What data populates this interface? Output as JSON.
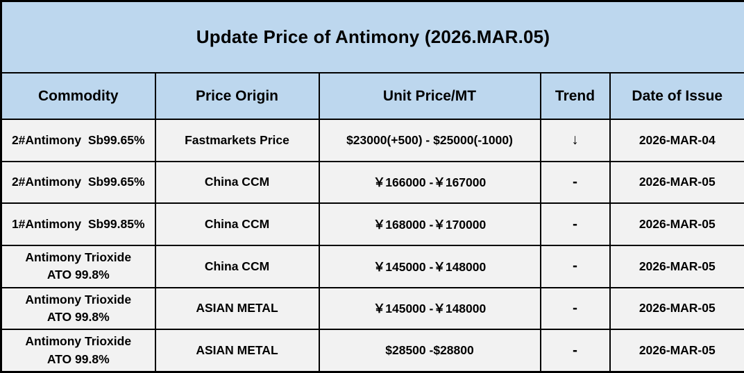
{
  "title": "Update Price of Antimony (2026.MAR.05)",
  "colors": {
    "header_bg": "#BDD7EE",
    "row_bg": "#F2F2F2",
    "border": "#000000",
    "text": "#000000"
  },
  "columns": {
    "commodity": "Commodity",
    "origin": "Price Origin",
    "price": "Unit Price/MT",
    "trend": "Trend",
    "date": "Date of Issue"
  },
  "icons": {
    "trend_down": "↓"
  },
  "rows": [
    {
      "commodity": "2#Antimony  Sb99.65%",
      "origin": "Fastmarkets Price",
      "price": "$23000(+500) - $25000(-1000)",
      "trend": "↓",
      "date": "2026-MAR-04"
    },
    {
      "commodity": "2#Antimony  Sb99.65%",
      "origin": "China CCM",
      "price": "￥166000 -￥167000",
      "trend": "-",
      "date": "2026-MAR-05"
    },
    {
      "commodity": "1#Antimony  Sb99.85%",
      "origin": "China CCM",
      "price": "￥168000 -￥170000",
      "trend": "-",
      "date": "2026-MAR-05"
    },
    {
      "commodity": "Antimony Trioxide\nATO 99.8%",
      "origin": "China CCM",
      "price": "￥145000 -￥148000",
      "trend": "-",
      "date": "2026-MAR-05"
    },
    {
      "commodity": "Antimony Trioxide\nATO 99.8%",
      "origin": "ASIAN METAL",
      "price": "￥145000 -￥148000",
      "trend": "-",
      "date": "2026-MAR-05"
    },
    {
      "commodity": "Antimony Trioxide\nATO 99.8%",
      "origin": "ASIAN METAL",
      "price": "$28500 -$28800",
      "trend": "-",
      "date": "2026-MAR-05"
    }
  ]
}
